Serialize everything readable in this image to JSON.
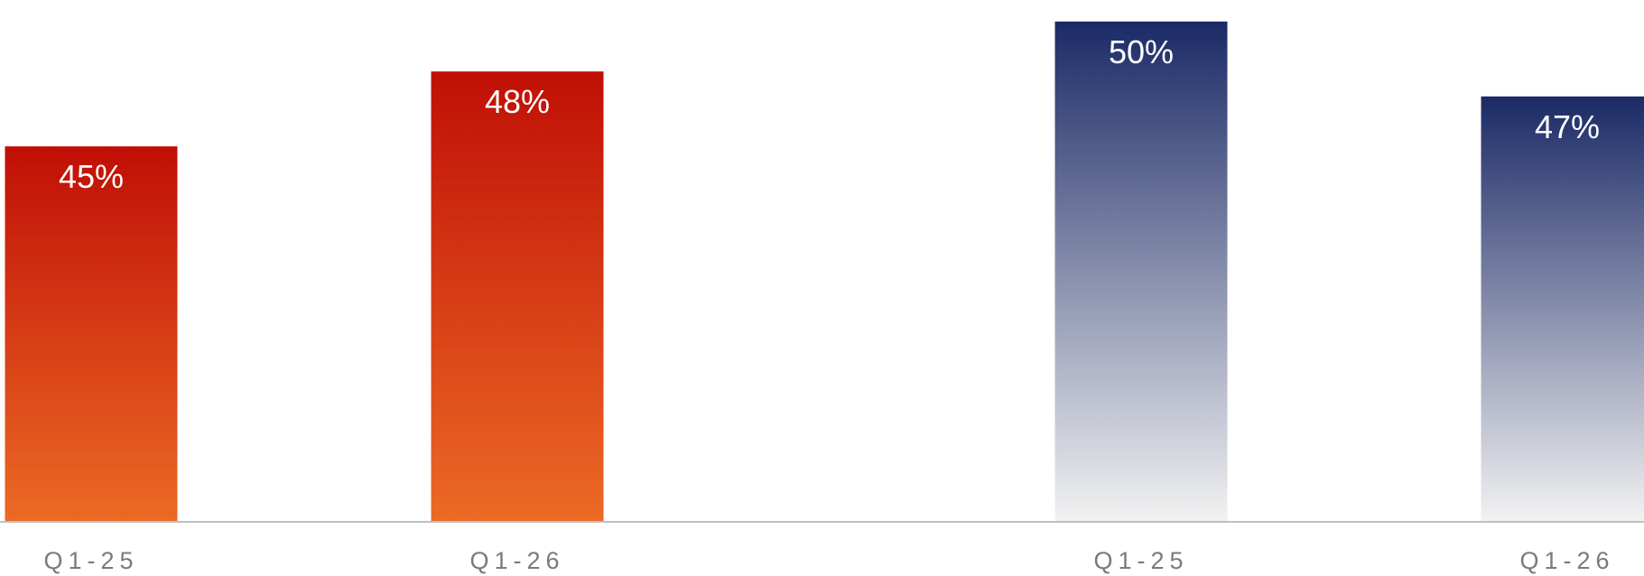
{
  "chart_data": {
    "type": "bar",
    "categories": [
      "Q1-25",
      "Q1-26",
      "Q1-25",
      "Q1-26"
    ],
    "values": [
      45,
      48,
      50,
      47
    ],
    "data_labels": [
      "45%",
      "48%",
      "50%",
      "47%"
    ],
    "tick_labels": [
      "Q1-25",
      "Q1-26",
      "Q1-25",
      "Q1-26"
    ],
    "groups": [
      {
        "bars": [
          0,
          1
        ],
        "colors": {
          "top": "#C00F06",
          "bottom": "#EC6A25"
        }
      },
      {
        "bars": [
          2,
          3
        ],
        "colors": {
          "top": "#1B2A66",
          "bottom": "#F2F2F2"
        }
      }
    ],
    "axis_color": "#BFBFBF",
    "ylim": [
      30,
      50.5
    ],
    "grid": false,
    "title": "",
    "xlabel": "",
    "ylabel": ""
  }
}
